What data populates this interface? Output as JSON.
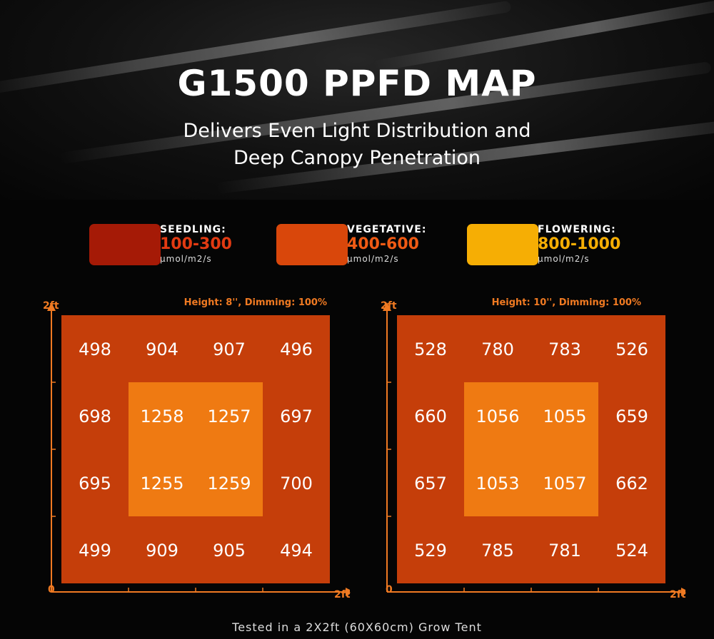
{
  "title": "G1500 PPFD MAP",
  "subtitle_line1": "Delivers Even Light Distribution and",
  "subtitle_line2": "Deep Canopy Penetration",
  "legend": [
    {
      "name": "SEEDLING:",
      "range": "100-300",
      "unit": "μmol/m2/s",
      "color": "#a51a06",
      "text_color": "#e23a12"
    },
    {
      "name": "VEGETATIVE:",
      "range": "400-600",
      "unit": "μmol/m2/s",
      "color": "#d9470b",
      "text_color": "#ef5a14"
    },
    {
      "name": "FLOWERING:",
      "range": "800-1000",
      "unit": "μmol/m2/s",
      "color": "#f6ae04",
      "text_color": "#f6ae04"
    }
  ],
  "footnote": "Tested in a 2X2ft (60X60cm) Grow Tent",
  "chart_data": [
    {
      "type": "heatmap",
      "annotation": "Height: 8'', Dimming: 100%",
      "x_axis_start": "0",
      "x_axis_end": "2ft",
      "y_axis_end": "2ft",
      "rows": [
        [
          498,
          904,
          907,
          496
        ],
        [
          698,
          1258,
          1257,
          697
        ],
        [
          695,
          1255,
          1259,
          700
        ],
        [
          499,
          909,
          905,
          494
        ]
      ],
      "colors": {
        "outer": "#c53e0a",
        "inner": "#ef7a12"
      }
    },
    {
      "type": "heatmap",
      "annotation": "Height: 10'', Dimming: 100%",
      "x_axis_start": "0",
      "x_axis_end": "2ft",
      "y_axis_end": "2ft",
      "rows": [
        [
          528,
          780,
          783,
          526
        ],
        [
          660,
          1056,
          1055,
          659
        ],
        [
          657,
          1053,
          1057,
          662
        ],
        [
          529,
          785,
          781,
          524
        ]
      ],
      "colors": {
        "outer": "#c53e0a",
        "inner": "#ef7a12"
      }
    }
  ]
}
